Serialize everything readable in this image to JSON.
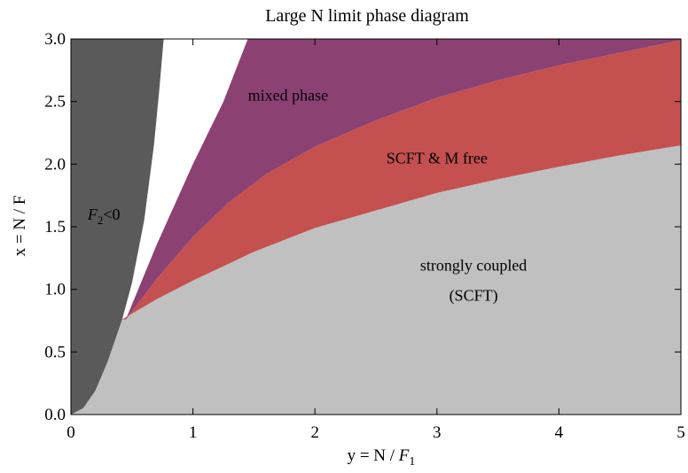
{
  "chart_data": {
    "type": "area",
    "title": "Large N limit phase diagram",
    "xlabel": "y = N / F",
    "xlabel_sub": "1",
    "ylabel": "x = N / F",
    "xlim": [
      0,
      5
    ],
    "ylim": [
      0,
      3
    ],
    "x_ticks": [
      0,
      1,
      2,
      3,
      4,
      5
    ],
    "y_ticks": [
      0.0,
      0.5,
      1.0,
      1.5,
      2.0,
      2.5,
      3.0
    ],
    "x_tick_labels": [
      "0",
      "1",
      "2",
      "3",
      "4",
      "5"
    ],
    "y_tick_labels": [
      "0.0",
      "0.5",
      "1.0",
      "1.5",
      "2.0",
      "2.5",
      "3.0"
    ],
    "grid": false,
    "regions": [
      {
        "name": "F2<0",
        "label_main": "F",
        "label_sub": "2",
        "label_rest": "<0",
        "label_at": [
          0.27,
          1.6
        ],
        "color": "#5a5a5a",
        "boundary": [
          [
            0,
            0
          ],
          [
            0.1,
            0.05
          ],
          [
            0.2,
            0.19
          ],
          [
            0.3,
            0.42
          ],
          [
            0.42,
            0.76
          ],
          [
            0.5,
            1.05
          ],
          [
            0.6,
            1.55
          ],
          [
            0.68,
            2.15
          ],
          [
            0.72,
            2.55
          ],
          [
            0.76,
            3.0
          ]
        ]
      },
      {
        "name": "mixed phase",
        "label": "mixed phase",
        "label_at": [
          1.78,
          2.55
        ],
        "color": "#8c4173",
        "boundary": [
          [
            0.45,
            0.76
          ],
          [
            0.8,
            1.28
          ],
          [
            1.1,
            1.67
          ],
          [
            1.4,
            2.05
          ],
          [
            1.7,
            2.38
          ],
          [
            1.95,
            2.68
          ],
          [
            2.25,
            3.0
          ],
          [
            5,
            3.0
          ]
        ]
      },
      {
        "name": "SCFT & M free",
        "label": "SCFT & M free",
        "label_at": [
          3.0,
          2.05
        ],
        "color": "#c4504f",
        "boundary": [
          [
            0.45,
            0.76
          ],
          [
            0.7,
            1.08
          ],
          [
            1.0,
            1.42
          ],
          [
            1.3,
            1.7
          ],
          [
            1.6,
            1.92
          ],
          [
            2.0,
            2.14
          ],
          [
            2.5,
            2.35
          ],
          [
            3.0,
            2.53
          ],
          [
            3.5,
            2.67
          ],
          [
            4.0,
            2.79
          ],
          [
            4.5,
            2.89
          ],
          [
            5,
            2.99
          ]
        ]
      },
      {
        "name": "strongly coupled (SCFT)",
        "label": "strongly coupled",
        "label2": "(SCFT)",
        "label_at": [
          3.3,
          1.12
        ],
        "color": "#c0c0c0",
        "boundary": [
          [
            0.42,
            0.76
          ],
          [
            0.7,
            0.92
          ],
          [
            1.0,
            1.07
          ],
          [
            1.5,
            1.3
          ],
          [
            2.0,
            1.49
          ],
          [
            2.5,
            1.63
          ],
          [
            3.0,
            1.77
          ],
          [
            3.5,
            1.88
          ],
          [
            4.0,
            1.98
          ],
          [
            4.5,
            2.07
          ],
          [
            5,
            2.15
          ]
        ]
      }
    ],
    "white_gap_edge": [
      [
        0.45,
        0.76
      ],
      [
        0.7,
        1.35
      ],
      [
        1.0,
        2.0
      ],
      [
        1.25,
        2.5
      ],
      [
        1.45,
        3.0
      ]
    ]
  }
}
